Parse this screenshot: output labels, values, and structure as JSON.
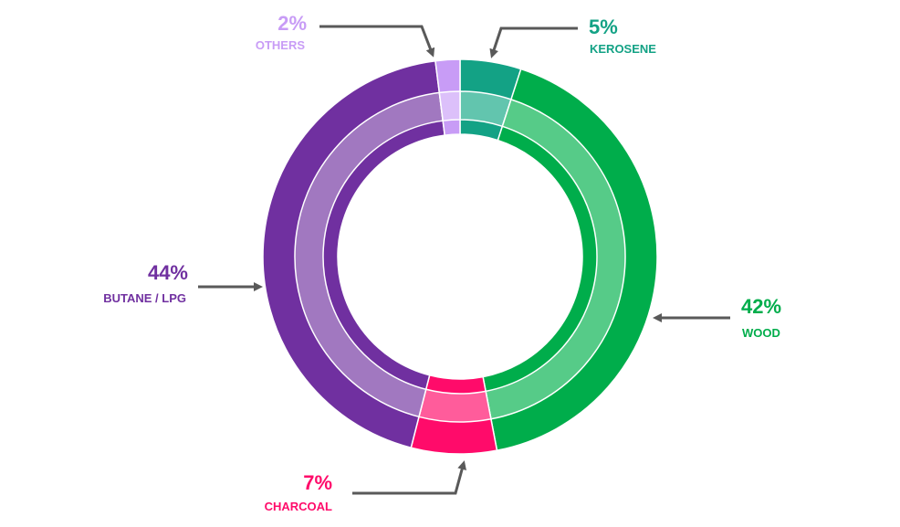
{
  "chart_data": {
    "type": "pie",
    "variant": "donut",
    "slices": [
      {
        "label": "KEROSENE",
        "value": 5,
        "display": "5%",
        "color": "#13a285",
        "light": "#62c5ae"
      },
      {
        "label": "WOOD",
        "value": 42,
        "display": "42%",
        "color": "#00ad4b",
        "light": "#56cb88"
      },
      {
        "label": "CHARCOAL",
        "value": 7,
        "display": "7%",
        "color": "#ff0b6a",
        "light": "#ff5c9b"
      },
      {
        "label": "BUTANE / LPG",
        "value": 44,
        "display": "44%",
        "color": "#7030a0",
        "light": "#a178c0"
      },
      {
        "label": "OTHERS",
        "value": 2,
        "display": "2%",
        "color": "#c89cf6",
        "light": "#dcc0fa"
      }
    ],
    "arrow_color": "#595959"
  }
}
